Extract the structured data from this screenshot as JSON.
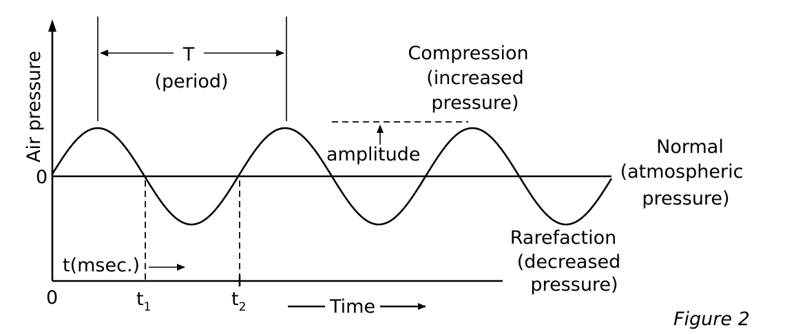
{
  "axes": {
    "y_label": "Air pressure",
    "y_origin": "0",
    "x_origin": "0",
    "x_label": "Time",
    "t_label": "t(msec.)",
    "t1_base": "t",
    "t1_sub": "1",
    "t2_base": "t",
    "t2_sub": "2"
  },
  "period": {
    "symbol": "T",
    "caption": "(period)"
  },
  "annotations": {
    "compression_line1": "Compression",
    "compression_line2": "(increased",
    "compression_line3": "pressure)",
    "amplitude": "amplitude",
    "normal_line1": "Normal",
    "normal_line2": "(atmospheric",
    "normal_line3": "pressure)",
    "rarefaction_line1": "Rarefaction",
    "rarefaction_line2": "(decreased",
    "rarefaction_line3": "pressure)"
  },
  "figure_caption": "Figure 2"
}
